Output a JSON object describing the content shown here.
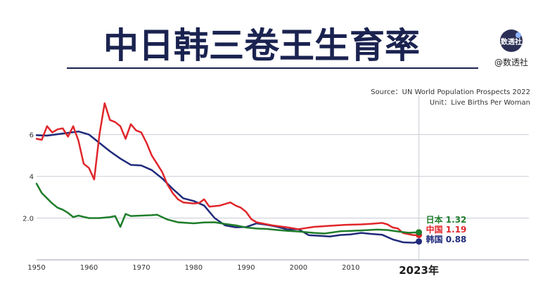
{
  "header": {
    "title": "中日韩三卷王生育率",
    "logo_text": "数透社",
    "handle": "@数透社"
  },
  "source_line": "Source：UN World Population Prospects 2022",
  "unit_line": "Unit：Live Births Per Woman",
  "colors": {
    "title": "#1a2350",
    "korea": "#1f2a7a",
    "china": "#e0262b",
    "japan": "#1e7d2a",
    "grid": "#c9ccd6",
    "axis_text": "#333333"
  },
  "chart_data": {
    "type": "line",
    "title": "中日韩三卷王生育率",
    "ylabel": "",
    "xlabel": "",
    "xlim": [
      1950,
      2044
    ],
    "ylim": [
      0,
      7.4
    ],
    "yticks": [
      2.0,
      4,
      6
    ],
    "ytick_labels": [
      "2.0",
      "4",
      "6"
    ],
    "xticks": [
      1950,
      1960,
      1970,
      1980,
      1990,
      2000,
      2010
    ],
    "xtick_labels": [
      "1950",
      "1960",
      "1970",
      "1980",
      "1990",
      "2000",
      "2010"
    ],
    "marker_year_label": "2023年",
    "marker_year": 2023,
    "grid": true,
    "series": [
      {
        "name": "韩国",
        "key": "korea",
        "end_label": "韩国 0.88",
        "points": [
          [
            1950,
            5.97
          ],
          [
            1952,
            5.95
          ],
          [
            1955,
            6.05
          ],
          [
            1958,
            6.15
          ],
          [
            1960,
            6.0
          ],
          [
            1962,
            5.6
          ],
          [
            1964,
            5.2
          ],
          [
            1966,
            4.85
          ],
          [
            1968,
            4.55
          ],
          [
            1970,
            4.52
          ],
          [
            1972,
            4.3
          ],
          [
            1974,
            3.9
          ],
          [
            1976,
            3.4
          ],
          [
            1978,
            2.95
          ],
          [
            1980,
            2.82
          ],
          [
            1982,
            2.6
          ],
          [
            1984,
            2.0
          ],
          [
            1986,
            1.65
          ],
          [
            1988,
            1.56
          ],
          [
            1990,
            1.57
          ],
          [
            1992,
            1.75
          ],
          [
            1994,
            1.68
          ],
          [
            1996,
            1.58
          ],
          [
            1998,
            1.45
          ],
          [
            2000,
            1.47
          ],
          [
            2002,
            1.18
          ],
          [
            2004,
            1.15
          ],
          [
            2006,
            1.12
          ],
          [
            2008,
            1.19
          ],
          [
            2010,
            1.22
          ],
          [
            2012,
            1.29
          ],
          [
            2014,
            1.24
          ],
          [
            2016,
            1.2
          ],
          [
            2018,
            0.98
          ],
          [
            2020,
            0.84
          ],
          [
            2022,
            0.82
          ],
          [
            2023,
            0.88
          ]
        ]
      },
      {
        "name": "中国",
        "key": "china",
        "end_label": "中国 1.19",
        "points": [
          [
            1950,
            5.8
          ],
          [
            1951,
            5.75
          ],
          [
            1952,
            6.4
          ],
          [
            1953,
            6.1
          ],
          [
            1954,
            6.25
          ],
          [
            1955,
            6.3
          ],
          [
            1956,
            5.9
          ],
          [
            1957,
            6.4
          ],
          [
            1958,
            5.7
          ],
          [
            1959,
            4.6
          ],
          [
            1960,
            4.4
          ],
          [
            1961,
            3.85
          ],
          [
            1962,
            6.0
          ],
          [
            1963,
            7.5
          ],
          [
            1964,
            6.7
          ],
          [
            1965,
            6.6
          ],
          [
            1966,
            6.4
          ],
          [
            1967,
            5.8
          ],
          [
            1968,
            6.5
          ],
          [
            1969,
            6.2
          ],
          [
            1970,
            6.1
          ],
          [
            1971,
            5.6
          ],
          [
            1972,
            5.0
          ],
          [
            1973,
            4.6
          ],
          [
            1974,
            4.2
          ],
          [
            1975,
            3.6
          ],
          [
            1976,
            3.2
          ],
          [
            1977,
            2.9
          ],
          [
            1978,
            2.75
          ],
          [
            1980,
            2.7
          ],
          [
            1981,
            2.72
          ],
          [
            1982,
            2.9
          ],
          [
            1983,
            2.55
          ],
          [
            1985,
            2.6
          ],
          [
            1987,
            2.75
          ],
          [
            1988,
            2.6
          ],
          [
            1989,
            2.5
          ],
          [
            1990,
            2.3
          ],
          [
            1991,
            1.95
          ],
          [
            1992,
            1.8
          ],
          [
            1995,
            1.65
          ],
          [
            1998,
            1.55
          ],
          [
            2000,
            1.47
          ],
          [
            2003,
            1.58
          ],
          [
            2006,
            1.63
          ],
          [
            2009,
            1.68
          ],
          [
            2012,
            1.7
          ],
          [
            2014,
            1.73
          ],
          [
            2016,
            1.77
          ],
          [
            2017,
            1.7
          ],
          [
            2018,
            1.55
          ],
          [
            2019,
            1.5
          ],
          [
            2020,
            1.28
          ],
          [
            2022,
            1.18
          ],
          [
            2023,
            1.19
          ]
        ]
      },
      {
        "name": "日本",
        "key": "japan",
        "end_label": "日本 1.32",
        "points": [
          [
            1950,
            3.65
          ],
          [
            1951,
            3.2
          ],
          [
            1952,
            2.95
          ],
          [
            1953,
            2.7
          ],
          [
            1954,
            2.5
          ],
          [
            1955,
            2.4
          ],
          [
            1956,
            2.25
          ],
          [
            1957,
            2.05
          ],
          [
            1958,
            2.12
          ],
          [
            1959,
            2.06
          ],
          [
            1960,
            2.0
          ],
          [
            1962,
            2.0
          ],
          [
            1964,
            2.05
          ],
          [
            1965,
            2.1
          ],
          [
            1966,
            1.58
          ],
          [
            1967,
            2.2
          ],
          [
            1968,
            2.1
          ],
          [
            1970,
            2.12
          ],
          [
            1972,
            2.14
          ],
          [
            1973,
            2.16
          ],
          [
            1975,
            1.93
          ],
          [
            1977,
            1.8
          ],
          [
            1980,
            1.75
          ],
          [
            1982,
            1.79
          ],
          [
            1984,
            1.8
          ],
          [
            1986,
            1.72
          ],
          [
            1988,
            1.65
          ],
          [
            1990,
            1.55
          ],
          [
            1992,
            1.5
          ],
          [
            1994,
            1.48
          ],
          [
            1996,
            1.43
          ],
          [
            1998,
            1.39
          ],
          [
            2000,
            1.36
          ],
          [
            2003,
            1.29
          ],
          [
            2005,
            1.26
          ],
          [
            2008,
            1.37
          ],
          [
            2010,
            1.39
          ],
          [
            2012,
            1.41
          ],
          [
            2015,
            1.45
          ],
          [
            2017,
            1.43
          ],
          [
            2019,
            1.36
          ],
          [
            2021,
            1.3
          ],
          [
            2023,
            1.32
          ]
        ]
      }
    ]
  }
}
